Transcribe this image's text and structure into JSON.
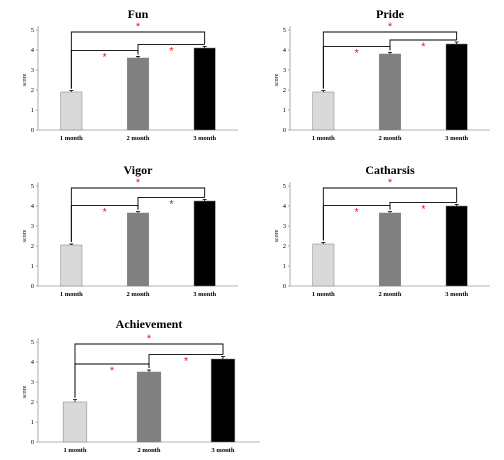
{
  "chart_data": [
    {
      "type": "bar",
      "title": "Fun",
      "ylabel": "score",
      "categories": [
        "1 month",
        "2 month",
        "3 month"
      ],
      "values": [
        1.9,
        3.6,
        4.1
      ],
      "errors": [
        0.07,
        0.08,
        0.08
      ],
      "bar_colors": [
        "#d9d9d9",
        "#808080",
        "#000000"
      ],
      "ylim": [
        0,
        5
      ],
      "yticks": [
        "0",
        "1",
        "2",
        "3",
        "4",
        "5"
      ],
      "significance": [
        {
          "from": 0,
          "to": 1,
          "label": "*"
        },
        {
          "from": 1,
          "to": 2,
          "label": "*"
        },
        {
          "from": 0,
          "to": 2,
          "label": "*"
        }
      ]
    },
    {
      "type": "bar",
      "title": "Pride",
      "ylabel": "score",
      "categories": [
        "1 month",
        "2 month",
        "3 month"
      ],
      "values": [
        1.9,
        3.8,
        4.3
      ],
      "errors": [
        0.07,
        0.08,
        0.1
      ],
      "bar_colors": [
        "#d9d9d9",
        "#808080",
        "#000000"
      ],
      "ylim": [
        0,
        5
      ],
      "yticks": [
        "0",
        "1",
        "2",
        "3",
        "4",
        "5"
      ],
      "significance": [
        {
          "from": 0,
          "to": 1,
          "label": "*"
        },
        {
          "from": 1,
          "to": 2,
          "label": "*"
        },
        {
          "from": 0,
          "to": 2,
          "label": "*"
        }
      ]
    },
    {
      "type": "bar",
      "title": "Vigor",
      "ylabel": "score",
      "categories": [
        "1 month",
        "2 month",
        "3 month"
      ],
      "values": [
        2.05,
        3.65,
        4.25
      ],
      "errors": [
        0.05,
        0.07,
        0.08
      ],
      "bar_colors": [
        "#d9d9d9",
        "#808080",
        "#000000"
      ],
      "ylim": [
        0,
        5
      ],
      "yticks": [
        "0",
        "1",
        "2",
        "3",
        "4",
        "5"
      ],
      "significance": [
        {
          "from": 0,
          "to": 1,
          "label": "*"
        },
        {
          "from": 1,
          "to": 2,
          "label": "*"
        },
        {
          "from": 0,
          "to": 2,
          "label": "*"
        }
      ]
    },
    {
      "type": "bar",
      "title": "Catharsis",
      "ylabel": "score",
      "categories": [
        "1 month",
        "2 month",
        "3 month"
      ],
      "values": [
        2.1,
        3.65,
        4.0
      ],
      "errors": [
        0.08,
        0.07,
        0.08
      ],
      "bar_colors": [
        "#d9d9d9",
        "#808080",
        "#000000"
      ],
      "ylim": [
        0,
        5
      ],
      "yticks": [
        "0",
        "1",
        "2",
        "3",
        "4",
        "5"
      ],
      "significance": [
        {
          "from": 0,
          "to": 1,
          "label": "*"
        },
        {
          "from": 1,
          "to": 2,
          "label": "*"
        },
        {
          "from": 0,
          "to": 2,
          "label": "*"
        }
      ]
    },
    {
      "type": "bar",
      "title": "Achievement",
      "ylabel": "score",
      "categories": [
        "1 month",
        "2 month",
        "3 month"
      ],
      "values": [
        2.0,
        3.5,
        4.15
      ],
      "errors": [
        0.12,
        0.1,
        0.12
      ],
      "bar_colors": [
        "#d9d9d9",
        "#808080",
        "#000000"
      ],
      "ylim": [
        0,
        5
      ],
      "yticks": [
        "0",
        "1",
        "2",
        "3",
        "4",
        "5"
      ],
      "significance": [
        {
          "from": 0,
          "to": 1,
          "label": "*"
        },
        {
          "from": 1,
          "to": 2,
          "label": "*"
        },
        {
          "from": 0,
          "to": 2,
          "label": "*"
        }
      ]
    }
  ]
}
